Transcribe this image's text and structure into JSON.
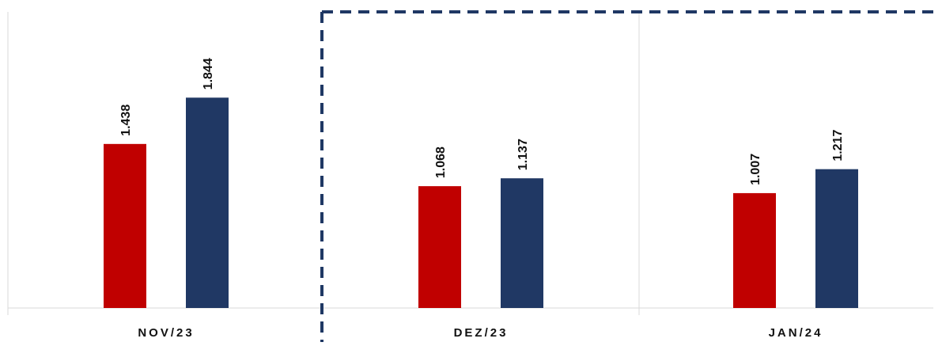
{
  "chart_data": {
    "type": "bar",
    "categories": [
      "NOV/23",
      "DEZ/23",
      "JAN/24"
    ],
    "series": [
      {
        "values": [
          1.438,
          1.068,
          1.007
        ],
        "color": "#c00000"
      },
      {
        "values": [
          1.844,
          1.137,
          1.217
        ],
        "color": "#203864"
      }
    ],
    "value_labels": [
      [
        "1.438",
        "1.844"
      ],
      [
        "1.068",
        "1.137"
      ],
      [
        "1.007",
        "1.217"
      ]
    ],
    "title": "",
    "xlabel": "",
    "ylabel": "",
    "ylim": [
      0,
      2.7
    ],
    "grid": false,
    "legend": "none",
    "highlight": {
      "style": "dashed-box",
      "categories": [
        "DEZ/23",
        "JAN/24"
      ],
      "color": "#1f3864"
    }
  }
}
